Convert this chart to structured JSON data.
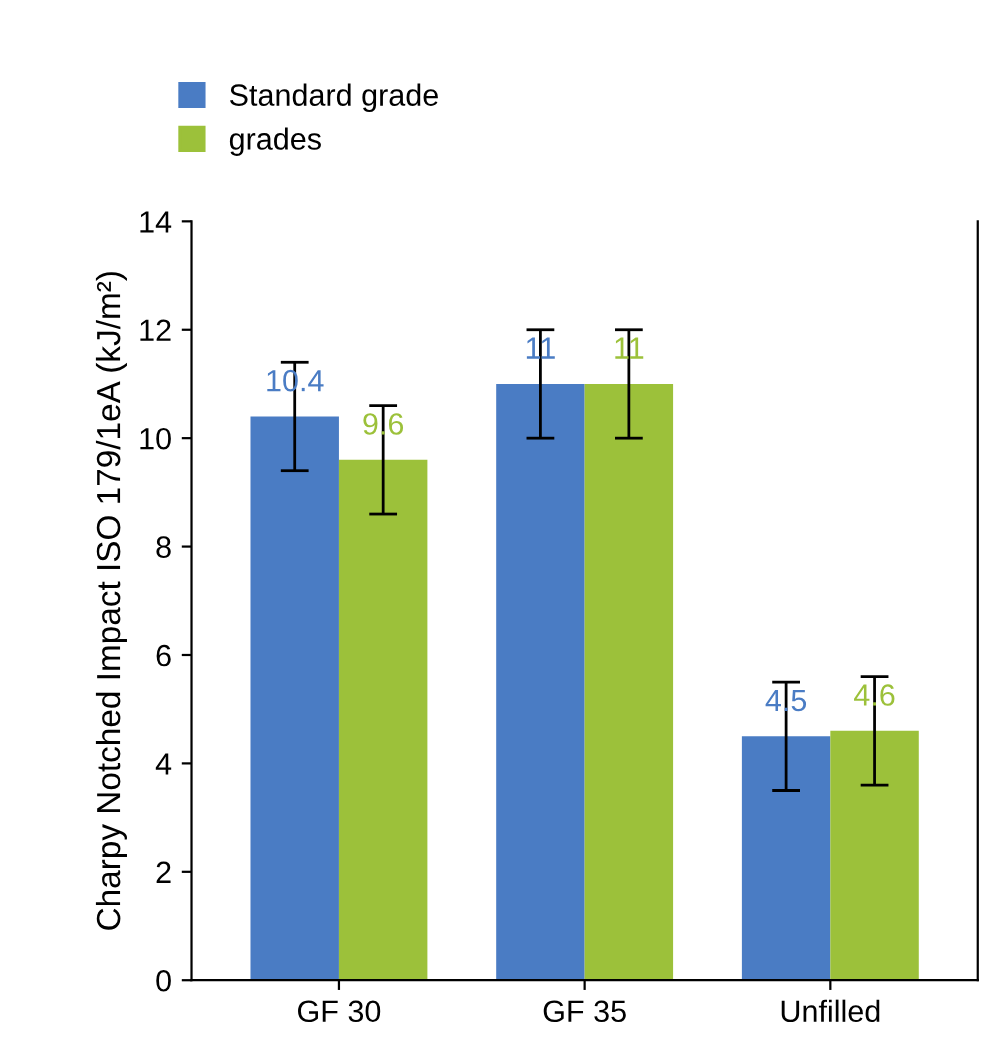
{
  "chart_data": {
    "type": "bar",
    "ylabel": "Charpy Notched Impact ISO 179/1eA (kJ/m²)",
    "categories": [
      "GF 30",
      "GF 35",
      "Unfilled"
    ],
    "series": [
      {
        "name": "Standard grade",
        "color": "#4a7cc4",
        "values": [
          10.4,
          11,
          4.5
        ],
        "errors": [
          1,
          1,
          1
        ]
      },
      {
        "name": "grades",
        "color": "#9cc13a",
        "values": [
          9.6,
          11,
          4.6
        ],
        "errors": [
          1,
          1,
          1
        ]
      }
    ],
    "ylim": [
      0,
      14
    ],
    "yticks": [
      0,
      2,
      4,
      6,
      8,
      10,
      12,
      14
    ],
    "data_labels": true,
    "legend": "top left",
    "grid": false
  }
}
